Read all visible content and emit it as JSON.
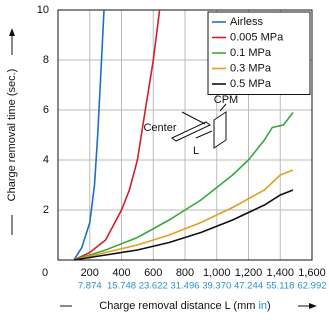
{
  "chart_data": {
    "type": "line",
    "y_label": "Charge removal time (sec.)",
    "x_label_parts": [
      "Charge removal distance L (mm ",
      "in",
      ")"
    ],
    "annotations": {
      "cpm": "CPM",
      "center": "Center",
      "l": "L"
    },
    "xlim": [
      0,
      1600
    ],
    "ylim": [
      0,
      10
    ],
    "xticks": [
      0,
      200,
      400,
      600,
      800,
      {
        "value": 1000,
        "label": "1,000"
      },
      {
        "value": 1200,
        "label": "1,200"
      },
      {
        "value": 1400,
        "label": "1,400"
      },
      {
        "value": 1600,
        "label": "1,600"
      }
    ],
    "xticks_in": [
      null,
      "7.874",
      "15.748",
      "23.622",
      "31.496",
      "39.370",
      "47.244",
      "55.118",
      "62.992"
    ],
    "yticks": [
      2,
      4,
      6,
      8,
      10
    ],
    "grid": true,
    "legend": "upper right",
    "series": [
      {
        "name": "Airless",
        "color": "#1f6fc0",
        "x": [
          100,
          150,
          200,
          230,
          250,
          270,
          290
        ],
        "values": [
          0,
          0.5,
          1.5,
          3,
          5,
          7.5,
          10
        ]
      },
      {
        "name": "0.005 MPa",
        "color": "#d0202a",
        "x": [
          100,
          200,
          300,
          400,
          450,
          500,
          550,
          600,
          640
        ],
        "values": [
          0,
          0.3,
          0.8,
          2,
          2.8,
          4,
          6,
          8,
          10
        ]
      },
      {
        "name": "0.1 MPa",
        "color": "#3aa83a",
        "x": [
          100,
          300,
          500,
          700,
          900,
          1100,
          1200,
          1300,
          1350,
          1420,
          1480
        ],
        "values": [
          0,
          0.4,
          0.9,
          1.6,
          2.4,
          3.4,
          4,
          4.8,
          5.3,
          5.4,
          5.9
        ]
      },
      {
        "name": "0.3 MPa",
        "color": "#e0a020",
        "x": [
          100,
          300,
          500,
          700,
          900,
          1100,
          1300,
          1400,
          1480
        ],
        "values": [
          0,
          0.3,
          0.6,
          1,
          1.5,
          2.1,
          2.8,
          3.4,
          3.6
        ]
      },
      {
        "name": "0.5 MPa",
        "color": "#111111",
        "x": [
          100,
          300,
          500,
          700,
          900,
          1100,
          1300,
          1400,
          1480
        ],
        "values": [
          0,
          0.2,
          0.4,
          0.7,
          1.1,
          1.6,
          2.2,
          2.6,
          2.8
        ]
      }
    ]
  }
}
